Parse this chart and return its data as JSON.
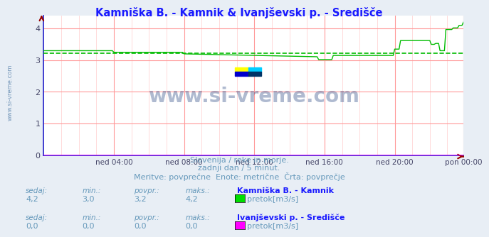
{
  "title": "Kamniška B. - Kamnik & Ivanjševski p. - Središče",
  "title_color": "#1a1aff",
  "background_color": "#e8eef5",
  "plot_bg_color": "#ffffff",
  "grid_color_major": "#ff9999",
  "grid_color_minor": "#ffcccc",
  "x_tick_labels": [
    "ned 04:00",
    "ned 08:00",
    "ned 12:00",
    "ned 16:00",
    "ned 20:00",
    "pon 00:00"
  ],
  "x_tick_positions": [
    48,
    96,
    144,
    192,
    240,
    287
  ],
  "ylim": [
    0,
    4.4
  ],
  "yticks": [
    0,
    1,
    2,
    3,
    4
  ],
  "total_points": 288,
  "line1_color": "#00bb00",
  "line1_avg_color": "#00bb00",
  "line1_avg": 3.22,
  "line2_color": "#ff00ff",
  "subtitle_color": "#6699bb",
  "subtitle1": "Slovenija / reke in morje.",
  "subtitle2": "zadnji dan / 5 minut.",
  "subtitle3": "Meritve: povprečne  Enote: metrične  Črta: povprečje",
  "legend1_label": "Kamniška B. - Kamnik",
  "legend1_unit": "pretok[m3/s]",
  "legend1_color": "#00dd00",
  "legend2_label": "Ivanjševski p. - Središče",
  "legend2_unit": "pretok[m3/s]",
  "legend2_color": "#ff00ff",
  "stats1": {
    "sedaj": "4,2",
    "min": "3,0",
    "povpr": "3,2",
    "maks": "4,2"
  },
  "stats2": {
    "sedaj": "0,0",
    "min": "0,0",
    "povpr": "0,0",
    "maks": "0,0"
  },
  "watermark": "www.si-vreme.com",
  "watermark_color": "#1a3a7a",
  "left_label": "www.si-vreme.com",
  "left_label_color": "#7799bb",
  "spine_color": "#2222cc",
  "tick_color": "#444466"
}
